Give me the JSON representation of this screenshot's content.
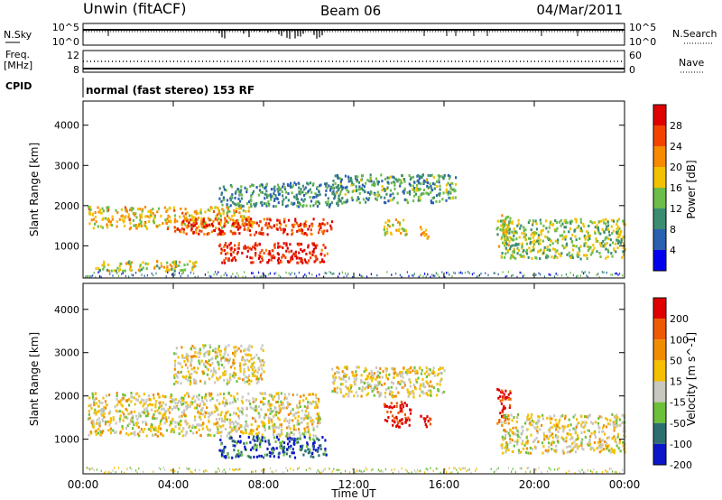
{
  "header": {
    "station": "Unwin (fitACF)",
    "beam": "Beam 06",
    "date": "04/Mar/2011"
  },
  "strips": {
    "nsky_label": "N.Sky",
    "nsky_ticks": [
      "10^5",
      "10^0"
    ],
    "nsearch_label": "N.Search",
    "nsearch_ticks": [
      "10^5",
      "10^0"
    ],
    "freq_label": "Freq.",
    "freq_unit": "[MHz]",
    "freq_ticks": [
      "12",
      "8"
    ],
    "nave_label": "Nave",
    "nave_ticks": [
      "60",
      "0"
    ],
    "cpid_label": "CPID",
    "cpid_text": "normal (fast stereo) 153 RF"
  },
  "colors": {
    "power_scale": [
      "#0000ee",
      "#2b5fb0",
      "#3c8c72",
      "#6dbd4a",
      "#f2c200",
      "#f78a00",
      "#f24400",
      "#e00000"
    ],
    "velocity_scale": [
      "#0a16c8",
      "#2e6e70",
      "#6cc03a",
      "#c8c8c0",
      "#f4c000",
      "#f08c00",
      "#ee5a00",
      "#e00000"
    ]
  },
  "chart_data": [
    {
      "type": "heatmap",
      "title": "Power",
      "ylabel": "Slant Range [km]",
      "xlabel": "Time UT",
      "x_ticks": [
        "00:00",
        "04:00",
        "08:00",
        "12:00",
        "16:00",
        "20:00",
        "00:00"
      ],
      "xlim": [
        0,
        24
      ],
      "ylim": [
        200,
        4600
      ],
      "y_ticks": [
        "4000",
        "3000",
        "2000",
        "1000"
      ],
      "colorbar_label": "Power [dB]",
      "colorbar_ticks": [
        "28",
        "24",
        "20",
        "16",
        "12",
        "8",
        "4"
      ],
      "colorbar_range": [
        0,
        32
      ],
      "echo_regions": [
        {
          "t": [
            0.2,
            7.5
          ],
          "r": [
            1450,
            2000
          ],
          "level": 0.6
        },
        {
          "t": [
            4.0,
            11.0
          ],
          "r": [
            1300,
            1700
          ],
          "level": 0.85
        },
        {
          "t": [
            6.0,
            10.8
          ],
          "r": [
            600,
            1100
          ],
          "level": 0.9
        },
        {
          "t": [
            0.5,
            5.0
          ],
          "r": [
            400,
            650
          ],
          "level": 0.5
        },
        {
          "t": [
            6.0,
            11.5
          ],
          "r": [
            2000,
            2600
          ],
          "level": 0.3
        },
        {
          "t": [
            11.0,
            16.5
          ],
          "r": [
            2100,
            2800
          ],
          "level": 0.35
        },
        {
          "t": [
            13.3,
            14.3
          ],
          "r": [
            1300,
            1700
          ],
          "level": 0.55
        },
        {
          "t": [
            14.9,
            15.4
          ],
          "r": [
            1200,
            1500
          ],
          "level": 0.7
        },
        {
          "t": [
            18.5,
            24.0
          ],
          "r": [
            700,
            1700
          ],
          "level": 0.45
        },
        {
          "t": [
            18.3,
            18.9
          ],
          "r": [
            1000,
            1800
          ],
          "level": 0.5
        }
      ]
    },
    {
      "type": "heatmap",
      "title": "Velocity",
      "ylabel": "Slant Range [km]",
      "xlabel": "Time UT",
      "x_ticks": [
        "00:00",
        "04:00",
        "08:00",
        "12:00",
        "16:00",
        "20:00",
        "00:00"
      ],
      "xlim": [
        0,
        24
      ],
      "ylim": [
        200,
        4600
      ],
      "y_ticks": [
        "4000",
        "3000",
        "2000",
        "1000"
      ],
      "colorbar_label": "Velocity [m s^-1]",
      "colorbar_ticks": [
        "200",
        "100",
        "50",
        "15",
        "-15",
        "-50",
        "-100",
        "-200"
      ],
      "colorbar_range": [
        -250,
        250
      ],
      "echo_regions": [
        {
          "t": [
            0.2,
            10.5
          ],
          "r": [
            1100,
            2100
          ],
          "level": 0.5
        },
        {
          "t": [
            6.0,
            10.8
          ],
          "r": [
            600,
            1100
          ],
          "level": 0.15
        },
        {
          "t": [
            4.0,
            8.0
          ],
          "r": [
            2300,
            3200
          ],
          "level": 0.5
        },
        {
          "t": [
            11.0,
            16.0
          ],
          "r": [
            2000,
            2700
          ],
          "level": 0.5
        },
        {
          "t": [
            13.3,
            14.5
          ],
          "r": [
            1300,
            1900
          ],
          "level": 0.95
        },
        {
          "t": [
            14.9,
            15.4
          ],
          "r": [
            1300,
            1600
          ],
          "level": 0.92
        },
        {
          "t": [
            18.3,
            18.9
          ],
          "r": [
            1300,
            2200
          ],
          "level": 0.9
        },
        {
          "t": [
            18.5,
            24.0
          ],
          "r": [
            700,
            1600
          ],
          "level": 0.5
        }
      ]
    }
  ]
}
